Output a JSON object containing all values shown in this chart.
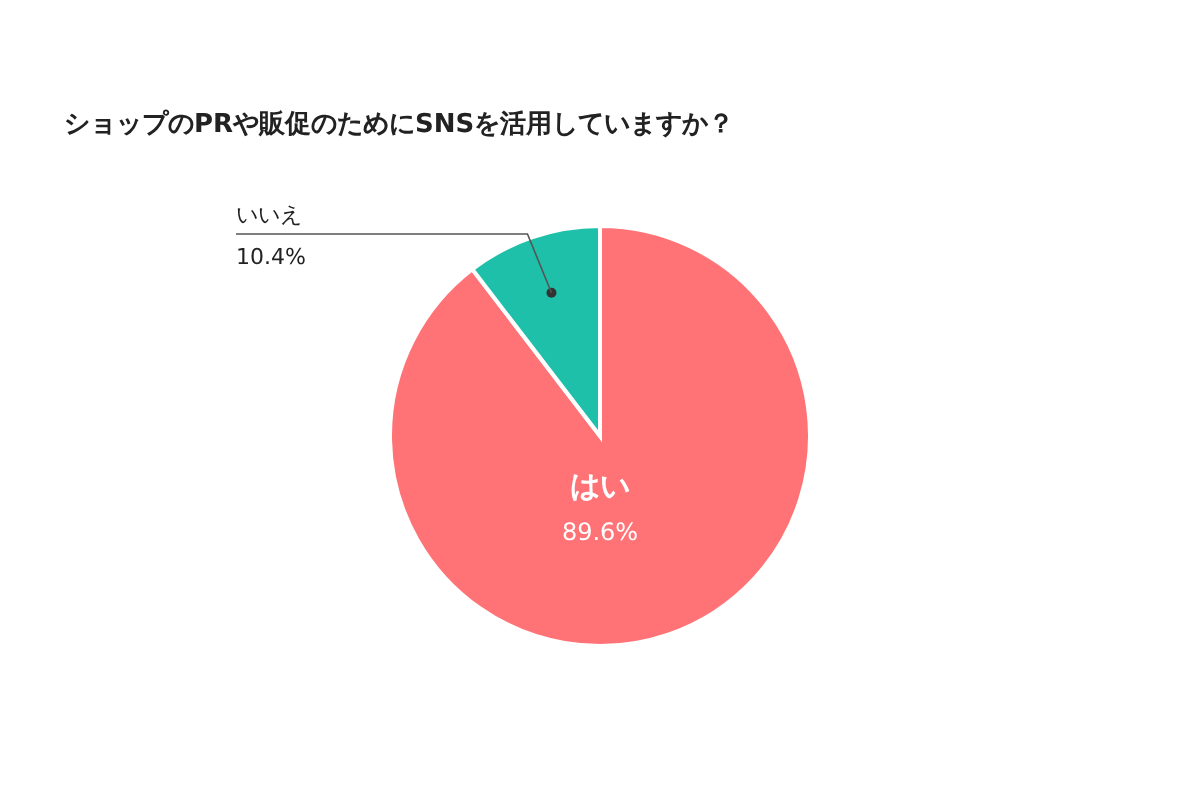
{
  "chart_data": {
    "type": "pie",
    "title": "ショップのPRや販促のためにSNSを活用していますか？",
    "categories": [
      "はい",
      "いいえ"
    ],
    "values": [
      89.6,
      10.4
    ],
    "value_labels": [
      "89.6%",
      "10.4%"
    ],
    "colors": [
      "#ff7376",
      "#1ec0a9"
    ]
  }
}
